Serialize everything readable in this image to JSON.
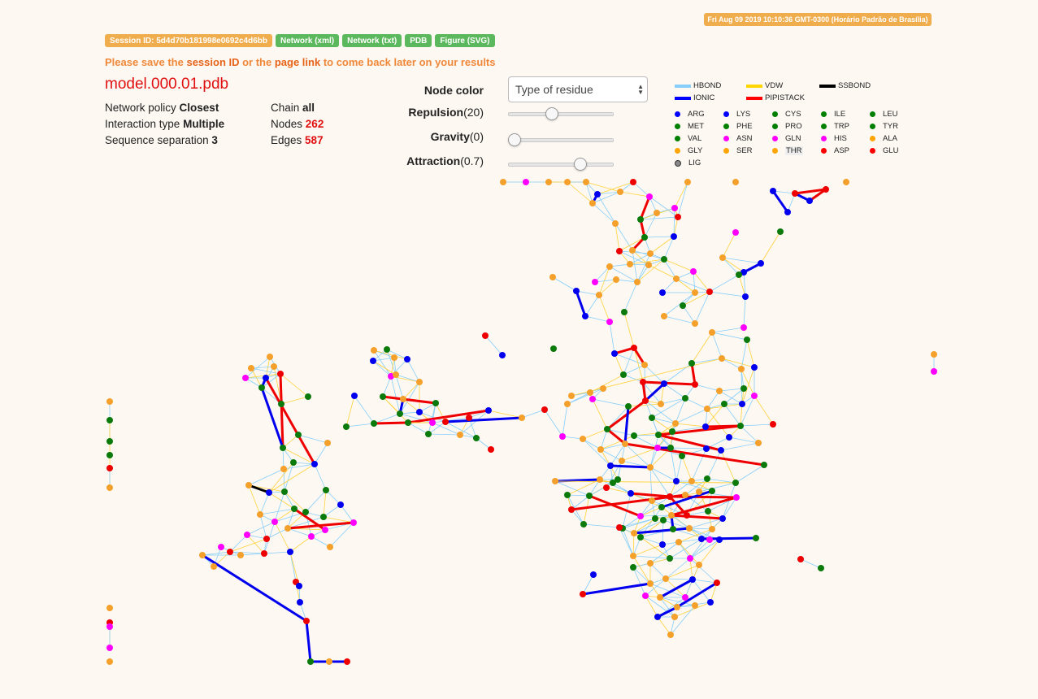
{
  "header": {
    "date": "Fri Aug 09 2019 10:10:36 GMT-0300 (Horário Padrão de Brasília)",
    "buttons": [
      {
        "label": "Session ID: 5d4d70b181998e0692c4d6bb",
        "color": "#f0ad4e"
      },
      {
        "label": "Network (xml)",
        "color": "#5cb85c"
      },
      {
        "label": "Network (txt)",
        "color": "#5cb85c"
      },
      {
        "label": "PDB",
        "color": "#5cb85c"
      },
      {
        "label": "Figure (SVG)",
        "color": "#5cb85c"
      }
    ],
    "notice": {
      "part1": "Please save the ",
      "hl1": "session ID",
      "part2": " or the ",
      "hl2": "page link",
      "part3": " to come back later on your results"
    }
  },
  "model": {
    "title": "model.000.01.pdb",
    "network_policy_label": "Network policy",
    "network_policy": "Closest",
    "interaction_type_label": "Interaction type",
    "interaction_type": "Multiple",
    "sequence_separation_label": "Sequence separation",
    "sequence_separation": "3",
    "chain_label": "Chain",
    "chain": "all",
    "nodes_label": "Nodes",
    "nodes": "262",
    "edges_label": "Edges",
    "edges": "587"
  },
  "controls": {
    "node_color_label": "Node color",
    "node_color_value": "Type of residue",
    "repulsion_label": "Repulsion",
    "repulsion_value": "(20)",
    "repulsion_fraction": 0.4,
    "gravity_label": "Gravity",
    "gravity_value": "(0)",
    "gravity_fraction": 0.0,
    "attraction_label": "Attraction",
    "attraction_value": "(0.7)",
    "attraction_fraction": 0.7
  },
  "legend": {
    "edges": [
      {
        "label": "HBOND",
        "color": "#87cefa"
      },
      {
        "label": "VDW",
        "color": "#ffd700"
      },
      {
        "label": "SSBOND",
        "color": "#000000"
      },
      {
        "label": "IONIC",
        "color": "#0000ff"
      },
      {
        "label": "PIPISTACK",
        "color": "#ff0000"
      }
    ],
    "residues": [
      {
        "label": "ARG",
        "color": "#0000ff"
      },
      {
        "label": "LYS",
        "color": "#0000ff"
      },
      {
        "label": "CYS",
        "color": "#008000"
      },
      {
        "label": "ILE",
        "color": "#008000"
      },
      {
        "label": "LEU",
        "color": "#008000"
      },
      {
        "label": "MET",
        "color": "#008000"
      },
      {
        "label": "PHE",
        "color": "#008000"
      },
      {
        "label": "PRO",
        "color": "#008000"
      },
      {
        "label": "TRP",
        "color": "#008000"
      },
      {
        "label": "TYR",
        "color": "#008000"
      },
      {
        "label": "VAL",
        "color": "#008000"
      },
      {
        "label": "ASN",
        "color": "#ff00ff"
      },
      {
        "label": "GLN",
        "color": "#ff00ff"
      },
      {
        "label": "HIS",
        "color": "#ff00ff"
      },
      {
        "label": "ALA",
        "color": "#ffa500"
      },
      {
        "label": "GLY",
        "color": "#ffa500"
      },
      {
        "label": "SER",
        "color": "#ffa500"
      },
      {
        "label": "THR",
        "color": "#ffa500"
      },
      {
        "label": "ASP",
        "color": "#ff0000"
      },
      {
        "label": "GLU",
        "color": "#ff0000"
      },
      {
        "label": "LIG",
        "color": "#888888"
      }
    ]
  }
}
